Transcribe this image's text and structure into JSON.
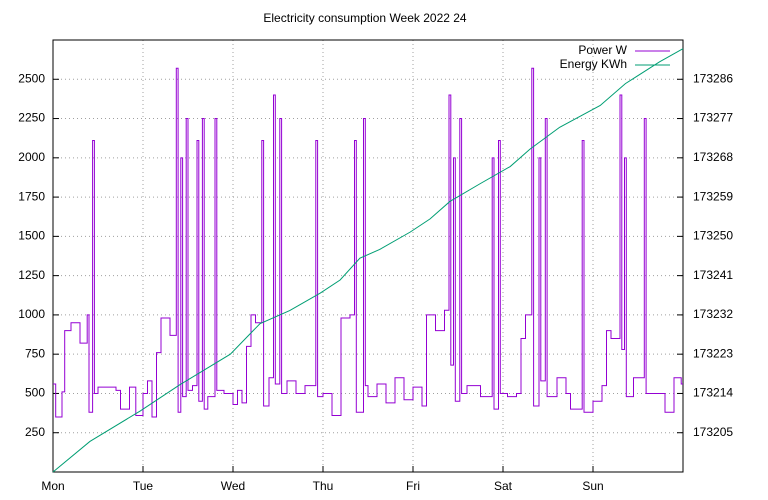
{
  "chart_data": {
    "type": "line",
    "title": "Electricity consumption Week 2022 24",
    "xlim": [
      0,
      7
    ],
    "xticks": [
      {
        "value": 0,
        "label": "Mon"
      },
      {
        "value": 1,
        "label": "Tue"
      },
      {
        "value": 2,
        "label": "Wed"
      },
      {
        "value": 3,
        "label": "Thu"
      },
      {
        "value": 4,
        "label": "Fri"
      },
      {
        "value": 5,
        "label": "Sat"
      },
      {
        "value": 6,
        "label": "Sun"
      }
    ],
    "ylim": [
      0,
      2750
    ],
    "yticks": [
      250,
      500,
      750,
      1000,
      1250,
      1500,
      1750,
      2000,
      2250,
      2500
    ],
    "y2lim": [
      173196,
      173295
    ],
    "y2ticks": [
      173205,
      173214,
      173223,
      173232,
      173241,
      173250,
      173259,
      173268,
      173277,
      173286
    ],
    "grid": true,
    "legend": "top-right",
    "series": [
      {
        "name": "Power W",
        "color": "#9400d3",
        "step": true,
        "x": [
          0,
          0.03,
          0.1,
          0.13,
          0.2,
          0.3,
          0.38,
          0.4,
          0.44,
          0.46,
          0.5,
          0.7,
          0.75,
          0.85,
          0.92,
          1.0,
          1.05,
          1.1,
          1.15,
          1.2,
          1.3,
          1.37,
          1.39,
          1.42,
          1.44,
          1.48,
          1.5,
          1.55,
          1.6,
          1.62,
          1.66,
          1.68,
          1.72,
          1.8,
          1.82,
          1.9,
          2.0,
          2.05,
          2.1,
          2.15,
          2.2,
          2.25,
          2.32,
          2.34,
          2.4,
          2.45,
          2.47,
          2.52,
          2.54,
          2.6,
          2.7,
          2.8,
          2.92,
          2.94,
          3.0,
          3.1,
          3.2,
          3.3,
          3.35,
          3.37,
          3.45,
          3.47,
          3.5,
          3.6,
          3.7,
          3.8,
          3.9,
          4.0,
          4.1,
          4.15,
          4.25,
          4.35,
          4.4,
          4.42,
          4.45,
          4.47,
          4.52,
          4.54,
          4.6,
          4.75,
          4.88,
          4.9,
          4.95,
          4.97,
          5.05,
          5.15,
          5.2,
          5.25,
          5.32,
          5.34,
          5.4,
          5.42,
          5.47,
          5.49,
          5.6,
          5.7,
          5.75,
          5.88,
          5.9,
          6.0,
          6.1,
          6.15,
          6.2,
          6.3,
          6.32,
          6.35,
          6.37,
          6.45,
          6.57,
          6.59,
          6.7,
          6.8,
          6.9,
          6.98
        ],
        "values": [
          560,
          350,
          510,
          900,
          950,
          820,
          1000,
          380,
          2110,
          500,
          540,
          520,
          400,
          540,
          360,
          500,
          580,
          350,
          760,
          980,
          870,
          2570,
          380,
          2000,
          480,
          2250,
          520,
          550,
          2110,
          450,
          2250,
          400,
          480,
          2250,
          520,
          500,
          430,
          520,
          440,
          800,
          1000,
          950,
          2110,
          420,
          600,
          2400,
          560,
          2250,
          500,
          580,
          500,
          550,
          2110,
          480,
          500,
          360,
          980,
          1000,
          2110,
          380,
          2250,
          550,
          480,
          560,
          440,
          600,
          460,
          540,
          420,
          1000,
          900,
          1030,
          2400,
          680,
          2000,
          450,
          2250,
          500,
          550,
          480,
          2000,
          400,
          2110,
          500,
          480,
          500,
          850,
          1000,
          2570,
          420,
          2000,
          580,
          2250,
          480,
          600,
          500,
          400,
          2110,
          380,
          450,
          550,
          900,
          850,
          2400,
          780,
          2000,
          480,
          600,
          2250,
          500,
          500,
          380,
          600,
          560
        ]
      },
      {
        "name": "Energy KWh",
        "color": "#009e73",
        "axis": "y2",
        "x": [
          0,
          0.41,
          0.97,
          1.41,
          1.97,
          2.3,
          2.63,
          2.97,
          3.19,
          3.41,
          3.63,
          3.97,
          4.19,
          4.41,
          4.74,
          5.08,
          5.3,
          5.63,
          6.08,
          6.36,
          6.74,
          7
        ],
        "values": [
          173196,
          173203,
          173210,
          173216,
          173223,
          173230,
          173233,
          173237,
          173240,
          173245,
          173247,
          173251,
          173254,
          173258,
          173262,
          173266,
          173270,
          173275,
          173280,
          173285,
          173290,
          173293
        ]
      }
    ]
  }
}
